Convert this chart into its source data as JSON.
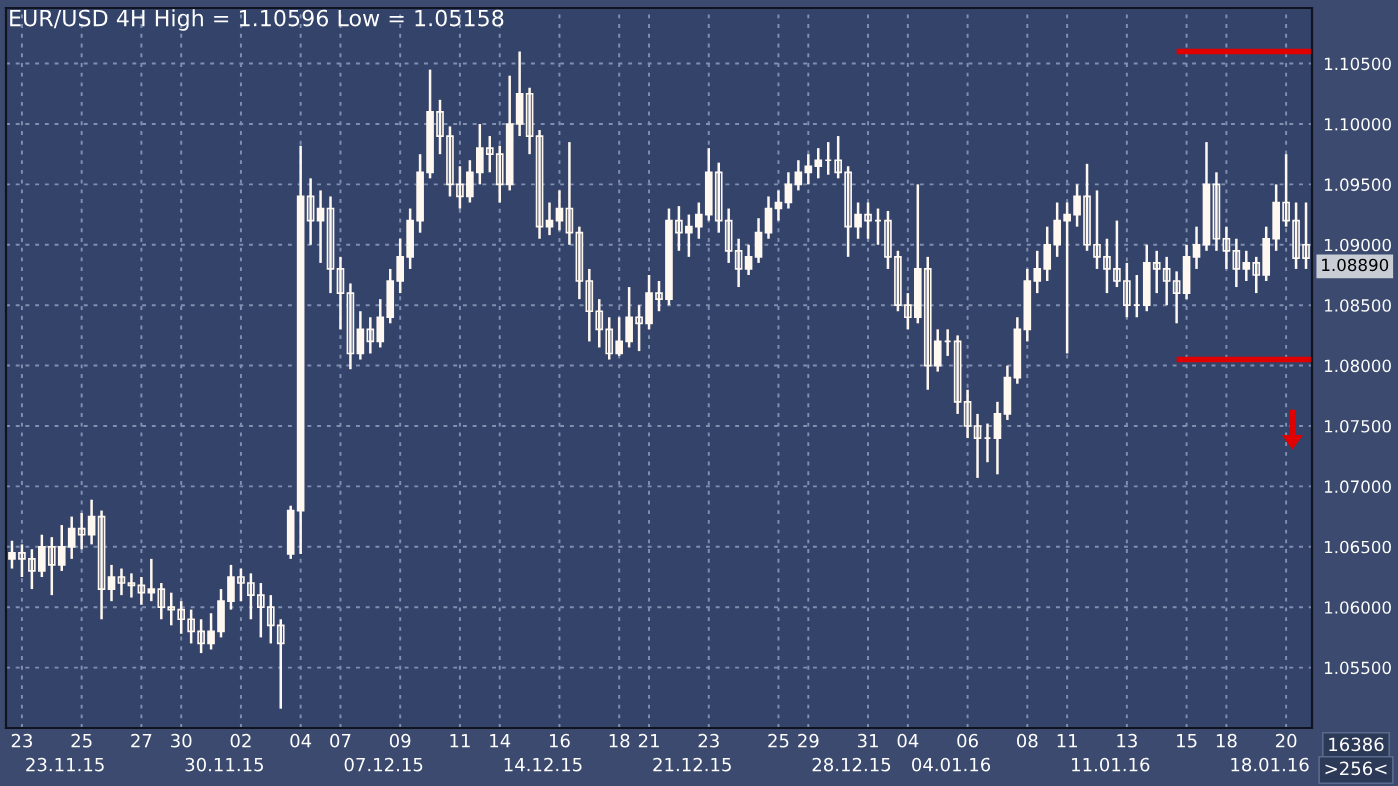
{
  "chart_data": {
    "type": "candlestick",
    "title": "EUR/USD 4H High = 1.10596 Low = 1.05158",
    "categories": [
      null,
      "23",
      null,
      null,
      null,
      null,
      null,
      "25",
      null,
      null,
      null,
      null,
      null,
      "27",
      null,
      null,
      null,
      "30",
      null,
      null,
      null,
      null,
      null,
      "02",
      null,
      null,
      null,
      null,
      null,
      "04",
      null,
      null,
      null,
      "07",
      null,
      null,
      null,
      null,
      null,
      "09",
      null,
      null,
      null,
      null,
      null,
      "11",
      null,
      null,
      null,
      "14",
      null,
      null,
      null,
      null,
      null,
      "16",
      null,
      null,
      null,
      null,
      null,
      "18",
      null,
      null,
      "21",
      null,
      null,
      null,
      null,
      null,
      "23",
      null,
      null,
      null,
      null,
      null,
      null,
      "25",
      null,
      null,
      "29",
      null,
      null,
      null,
      null,
      null,
      "31",
      null,
      null,
      null,
      "04",
      null,
      null,
      null,
      null,
      null,
      "06",
      null,
      null,
      null,
      null,
      null,
      "08",
      null,
      null,
      null,
      "11",
      null,
      null,
      null,
      null,
      null,
      "13",
      null,
      null,
      null,
      null,
      null,
      "15",
      null,
      null,
      null,
      "18",
      null,
      null,
      null,
      null,
      null,
      "20",
      null,
      null
    ],
    "ohlc": [
      [
        1.064,
        1.0655,
        1.0632,
        1.0645
      ],
      [
        1.0645,
        1.0652,
        1.0625,
        1.064
      ],
      [
        1.064,
        1.0648,
        1.0615,
        1.063
      ],
      [
        1.063,
        1.066,
        1.0625,
        1.065
      ],
      [
        1.065,
        1.0658,
        1.061,
        1.0635
      ],
      [
        1.0635,
        1.0668,
        1.063,
        1.065
      ],
      [
        1.065,
        1.0675,
        1.064,
        1.0665
      ],
      [
        1.0665,
        1.0678,
        1.0648,
        1.066
      ],
      [
        1.066,
        1.0689,
        1.0652,
        1.0675
      ],
      [
        1.0675,
        1.068,
        1.059,
        1.0615
      ],
      [
        1.0615,
        1.0635,
        1.0605,
        1.0625
      ],
      [
        1.0625,
        1.0632,
        1.061,
        1.062
      ],
      [
        1.062,
        1.0628,
        1.0608,
        1.0618
      ],
      [
        1.0618,
        1.0625,
        1.0602,
        1.0612
      ],
      [
        1.0612,
        1.064,
        1.0605,
        1.0615
      ],
      [
        1.0615,
        1.062,
        1.059,
        1.06
      ],
      [
        1.06,
        1.0612,
        1.0585,
        1.0598
      ],
      [
        1.0598,
        1.0605,
        1.0578,
        1.059
      ],
      [
        1.059,
        1.0598,
        1.057,
        1.058
      ],
      [
        1.058,
        1.059,
        1.0562,
        1.057
      ],
      [
        1.057,
        1.0595,
        1.0565,
        1.058
      ],
      [
        1.058,
        1.0615,
        1.0575,
        1.0605
      ],
      [
        1.0605,
        1.0635,
        1.0598,
        1.0625
      ],
      [
        1.0625,
        1.0632,
        1.0605,
        1.062
      ],
      [
        1.062,
        1.0628,
        1.059,
        1.061
      ],
      [
        1.061,
        1.062,
        1.0575,
        1.06
      ],
      [
        1.06,
        1.061,
        1.057,
        1.0585
      ],
      [
        1.0585,
        1.059,
        1.0516,
        1.057
      ],
      [
        1.0644,
        1.0684,
        1.064,
        1.068
      ],
      [
        1.068,
        1.0982,
        1.0644,
        1.094
      ],
      [
        1.094,
        1.0955,
        1.09,
        1.092
      ],
      [
        1.092,
        1.0945,
        1.0885,
        1.093
      ],
      [
        1.093,
        1.094,
        1.086,
        1.088
      ],
      [
        1.088,
        1.089,
        1.083,
        1.086
      ],
      [
        1.086,
        1.0868,
        1.0797,
        1.081
      ],
      [
        1.081,
        1.0845,
        1.0805,
        1.083
      ],
      [
        1.083,
        1.084,
        1.081,
        1.082
      ],
      [
        1.082,
        1.0855,
        1.0815,
        1.084
      ],
      [
        1.084,
        1.088,
        1.0835,
        1.087
      ],
      [
        1.087,
        1.0905,
        1.086,
        1.089
      ],
      [
        1.089,
        1.093,
        1.088,
        1.092
      ],
      [
        1.092,
        1.0975,
        1.091,
        1.096
      ],
      [
        1.096,
        1.1045,
        1.0955,
        1.101
      ],
      [
        1.101,
        1.102,
        1.0975,
        1.099
      ],
      [
        1.099,
        1.0998,
        1.094,
        1.095
      ],
      [
        1.095,
        1.0965,
        1.093,
        1.094
      ],
      [
        1.094,
        1.097,
        1.0935,
        1.096
      ],
      [
        1.096,
        1.1,
        1.095,
        1.098
      ],
      [
        1.098,
        1.099,
        1.096,
        1.0975
      ],
      [
        1.0975,
        1.0982,
        1.0935,
        1.095
      ],
      [
        1.095,
        1.104,
        1.0945,
        1.1
      ],
      [
        1.1,
        1.106,
        1.099,
        1.1025
      ],
      [
        1.1025,
        1.103,
        1.0975,
        1.099
      ],
      [
        1.099,
        1.0995,
        1.0905,
        1.0915
      ],
      [
        1.0915,
        1.0935,
        1.0908,
        1.092
      ],
      [
        1.092,
        1.0945,
        1.0912,
        1.093
      ],
      [
        1.093,
        1.0985,
        1.09,
        1.091
      ],
      [
        1.091,
        1.0915,
        1.0855,
        1.087
      ],
      [
        1.087,
        1.088,
        1.082,
        1.0845
      ],
      [
        1.0845,
        1.0855,
        1.0815,
        1.083
      ],
      [
        1.083,
        1.084,
        1.0805,
        1.081
      ],
      [
        1.081,
        1.084,
        1.0808,
        1.082
      ],
      [
        1.082,
        1.0865,
        1.0815,
        1.084
      ],
      [
        1.084,
        1.085,
        1.0812,
        1.0835
      ],
      [
        1.0835,
        1.0875,
        1.083,
        1.086
      ],
      [
        1.086,
        1.087,
        1.0845,
        1.0855
      ],
      [
        1.0855,
        1.093,
        1.085,
        1.092
      ],
      [
        1.092,
        1.0932,
        1.0895,
        1.091
      ],
      [
        1.091,
        1.0925,
        1.089,
        1.0915
      ],
      [
        1.0915,
        1.0935,
        1.0905,
        1.0925
      ],
      [
        1.0925,
        1.098,
        1.092,
        1.096
      ],
      [
        1.096,
        1.0968,
        1.091,
        1.092
      ],
      [
        1.092,
        1.093,
        1.0885,
        1.0895
      ],
      [
        1.0895,
        1.0905,
        1.0865,
        1.088
      ],
      [
        1.088,
        1.09,
        1.0875,
        1.089
      ],
      [
        1.089,
        1.0922,
        1.0885,
        1.091
      ],
      [
        1.091,
        1.094,
        1.0905,
        1.093
      ],
      [
        1.093,
        1.0945,
        1.092,
        1.0935
      ],
      [
        1.0935,
        1.096,
        1.093,
        1.095
      ],
      [
        1.095,
        1.097,
        1.0945,
        1.096
      ],
      [
        1.096,
        1.0975,
        1.095,
        1.0965
      ],
      [
        1.0965,
        1.098,
        1.0955,
        1.097
      ],
      [
        1.097,
        1.0985,
        1.0958,
        1.097
      ],
      [
        1.097,
        1.099,
        1.0955,
        1.096
      ],
      [
        1.096,
        1.0965,
        1.089,
        1.0915
      ],
      [
        1.0915,
        1.0935,
        1.0905,
        1.0925
      ],
      [
        1.0925,
        1.0935,
        1.0905,
        1.092
      ],
      [
        1.092,
        1.093,
        1.09,
        1.092
      ],
      [
        1.092,
        1.0928,
        1.088,
        1.089
      ],
      [
        1.089,
        1.0895,
        1.0845,
        1.085
      ],
      [
        1.085,
        1.086,
        1.083,
        1.084
      ],
      [
        1.084,
        1.095,
        1.0835,
        1.088
      ],
      [
        1.088,
        1.089,
        1.078,
        1.08
      ],
      [
        1.08,
        1.083,
        1.0795,
        1.082
      ],
      [
        1.082,
        1.083,
        1.0808,
        1.082
      ],
      [
        1.082,
        1.0825,
        1.076,
        1.077
      ],
      [
        1.077,
        1.078,
        1.074,
        1.075
      ],
      [
        1.075,
        1.076,
        1.0707,
        1.074
      ],
      [
        1.074,
        1.0752,
        1.072,
        1.074
      ],
      [
        1.074,
        1.077,
        1.071,
        1.076
      ],
      [
        1.076,
        1.08,
        1.0755,
        1.079
      ],
      [
        1.079,
        1.084,
        1.0785,
        1.083
      ],
      [
        1.083,
        1.088,
        1.082,
        1.087
      ],
      [
        1.087,
        1.0895,
        1.086,
        1.088
      ],
      [
        1.088,
        1.0915,
        1.087,
        1.09
      ],
      [
        1.09,
        1.0935,
        1.089,
        1.092
      ],
      [
        1.092,
        1.0935,
        1.081,
        1.0925
      ],
      [
        1.0925,
        1.095,
        1.0915,
        1.094
      ],
      [
        1.094,
        1.0967,
        1.0895,
        1.09
      ],
      [
        1.09,
        1.0945,
        1.088,
        1.089
      ],
      [
        1.089,
        1.0905,
        1.086,
        1.088
      ],
      [
        1.088,
        1.092,
        1.0865,
        1.087
      ],
      [
        1.087,
        1.0885,
        1.084,
        1.085
      ],
      [
        1.085,
        1.0875,
        1.084,
        1.085
      ],
      [
        1.085,
        1.09,
        1.0845,
        1.0885
      ],
      [
        1.0885,
        1.0895,
        1.086,
        1.088
      ],
      [
        1.088,
        1.089,
        1.085,
        1.087
      ],
      [
        1.087,
        1.0878,
        1.0835,
        1.086
      ],
      [
        1.086,
        1.09,
        1.0855,
        1.089
      ],
      [
        1.089,
        1.0915,
        1.088,
        1.09
      ],
      [
        1.09,
        1.0985,
        1.0895,
        1.095
      ],
      [
        1.095,
        1.096,
        1.0895,
        1.0905
      ],
      [
        1.0905,
        1.0915,
        1.088,
        1.0895
      ],
      [
        1.0895,
        1.0905,
        1.0865,
        1.088
      ],
      [
        1.088,
        1.0895,
        1.087,
        1.0885
      ],
      [
        1.0885,
        1.089,
        1.086,
        1.0875
      ],
      [
        1.0875,
        1.0915,
        1.087,
        1.0905
      ],
      [
        1.0905,
        1.095,
        1.0895,
        1.0935
      ],
      [
        1.0935,
        1.0975,
        1.0915,
        1.092
      ],
      [
        1.092,
        1.0935,
        1.088,
        1.0889
      ],
      [
        1.09,
        1.0935,
        1.088,
        1.0889
      ]
    ],
    "color": "#fff8f0",
    "ylim": [
      1.05,
      1.1096
    ],
    "yticks": [
      {
        "value": 1.055,
        "label": "1.05500"
      },
      {
        "value": 1.06,
        "label": "1.06000"
      },
      {
        "value": 1.065,
        "label": "1.06500"
      },
      {
        "value": 1.07,
        "label": "1.07000"
      },
      {
        "value": 1.075,
        "label": "1.07500"
      },
      {
        "value": 1.08,
        "label": "1.08000"
      },
      {
        "value": 1.085,
        "label": "1.08500"
      },
      {
        "value": 1.09,
        "label": "1.09000"
      },
      {
        "value": 1.095,
        "label": "1.09500"
      },
      {
        "value": 1.1,
        "label": "1.10000"
      },
      {
        "value": 1.105,
        "label": "1.10500"
      }
    ],
    "grid": true,
    "ref_lines": [
      {
        "axis": "y",
        "value": 1.106,
        "color": "#e00000"
      },
      {
        "axis": "y",
        "value": 1.0805,
        "color": "#e00000"
      }
    ],
    "annotations": [
      "23.11.15",
      "30.11.15",
      "07.12.15",
      "14.12.15",
      "21.12.15",
      "28.12.15",
      "04.01.16",
      "11.01.16",
      "18.01.16",
      "16386",
      ">256<",
      "1.08890"
    ]
  }
}
